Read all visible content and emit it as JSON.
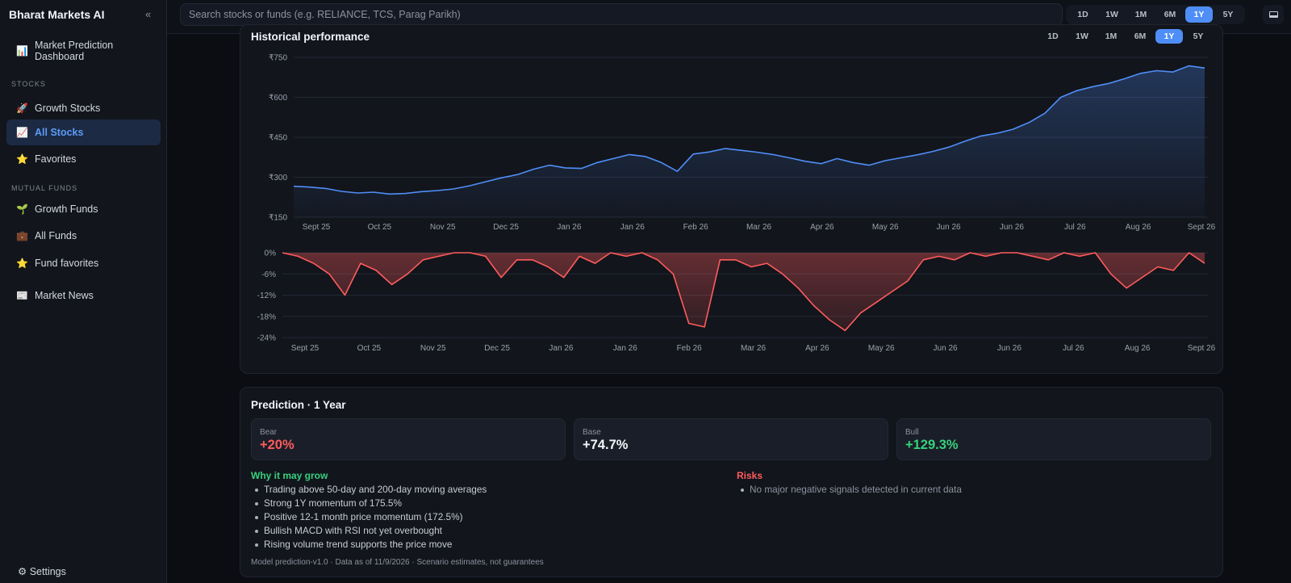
{
  "app": {
    "title": "Bharat Markets AI",
    "collapse_glyph": "«"
  },
  "sidebar": {
    "dashboard": {
      "label": "Market Prediction Dashboard",
      "line1": "Market Prediction",
      "line2": "Dashboard",
      "icon": "bar-chart-icon"
    },
    "stocks_header": "STOCKS",
    "stocks": [
      {
        "label": "Growth Stocks",
        "icon": "rocket-icon"
      },
      {
        "label": "All Stocks",
        "icon": "trend-chart-icon",
        "active": true
      },
      {
        "label": "Favorites",
        "icon": "star-icon"
      }
    ],
    "funds_header": "MUTUAL FUNDS",
    "funds": [
      {
        "label": "Growth Funds",
        "icon": "seedling-icon"
      },
      {
        "label": "All Funds",
        "icon": "briefcase-icon"
      },
      {
        "label": "Fund favorites",
        "icon": "star-icon"
      }
    ],
    "news": {
      "label": "Market News",
      "icon": "newspaper-icon"
    },
    "settings": {
      "label": "Settings",
      "icon": "gear-icon"
    }
  },
  "topbar": {
    "search_placeholder": "Search stocks or funds (e.g. RELIANCE, TCS, Parag Parikh)",
    "ranges": [
      "1D",
      "1W",
      "1M",
      "6M",
      "1Y",
      "5Y"
    ],
    "active_range": "1Y",
    "right_icon": "monitor-icon"
  },
  "chart": {
    "title": "Historical performance",
    "ranges": [
      "1D",
      "1W",
      "1M",
      "6M",
      "1Y",
      "5Y"
    ],
    "active_range": "1Y"
  },
  "chart_data": [
    {
      "type": "area",
      "title": "",
      "x_labels": [
        "Sept 25",
        "Oct 25",
        "Nov 25",
        "Dec 25",
        "Jan 26",
        "Jan 26",
        "Feb 26",
        "Mar 26",
        "Apr 26",
        "May 26",
        "Jun 26",
        "Jun 26",
        "Jul 26",
        "Aug 26",
        "Sept 26"
      ],
      "y_ticks": [
        "₹750",
        "₹600",
        "₹450",
        "₹300",
        "₹150"
      ],
      "ylim": [
        150,
        750
      ],
      "grid": true,
      "color": "#4f8ef7",
      "series": [
        {
          "values": [
            266,
            263,
            258,
            247,
            241,
            244,
            237,
            239,
            246,
            250,
            256,
            268,
            283,
            298,
            310,
            330,
            345,
            335,
            333,
            355,
            370,
            385,
            378,
            355,
            322,
            387,
            395,
            408,
            401,
            394,
            385,
            373,
            360,
            351,
            370,
            355,
            345,
            362,
            373,
            384,
            397,
            413,
            435,
            455,
            465,
            480,
            505,
            540,
            600,
            625,
            640,
            652,
            670,
            690,
            700,
            695,
            718,
            710
          ]
        }
      ]
    },
    {
      "type": "area",
      "title": "",
      "x_labels": [
        "Sept 25",
        "Oct 25",
        "Nov 25",
        "Dec 25",
        "Jan 26",
        "Jan 26",
        "Feb 26",
        "Mar 26",
        "Apr 26",
        "May 26",
        "Jun 26",
        "Jun 26",
        "Jul 26",
        "Aug 26",
        "Sept 26"
      ],
      "y_ticks": [
        "0%",
        "-6%",
        "-12%",
        "-18%",
        "-24%"
      ],
      "ylim": [
        -24,
        0
      ],
      "grid": true,
      "color": "#ff5c5c",
      "series": [
        {
          "values": [
            0,
            -1,
            -3,
            -6,
            -12,
            -3,
            -5,
            -9,
            -6,
            -2,
            -1,
            0,
            0,
            -1,
            -7,
            -2,
            -2,
            -4,
            -7,
            -1,
            -3,
            0,
            -1,
            0,
            -2,
            -6,
            -20,
            -21,
            -2,
            -2,
            -4,
            -3,
            -6,
            -10,
            -15,
            -19,
            -22,
            -17,
            -14,
            -11,
            -8,
            -2,
            -1,
            -2,
            0,
            -1,
            0,
            0,
            -1,
            -2,
            0,
            -1,
            0,
            -6,
            -10,
            -7,
            -4,
            -5,
            0,
            -3
          ]
        }
      ]
    }
  ],
  "prediction": {
    "title": "Prediction · 1 Year",
    "bear": {
      "label": "Bear",
      "value": "+20%",
      "color": "#ff5c5c"
    },
    "base": {
      "label": "Base",
      "value": "+74.7%",
      "color": "#f2f4f8"
    },
    "bull": {
      "label": "Bull",
      "value": "+129.3%",
      "color": "#37d17c"
    },
    "why_title": "Why it may grow",
    "why": [
      "Trading above 50-day and 200-day moving averages",
      "Strong 1Y momentum of 175.5%",
      "Positive 12-1 month price momentum (172.5%)",
      "Bullish MACD with RSI not yet overbought",
      "Rising volume trend supports the price move"
    ],
    "risks_title": "Risks",
    "risks": [
      "No major negative signals detected in current data"
    ],
    "footnote": "Model prediction-v1.0 · Data as of 11/9/2026 · Scenario estimates, not guarantees"
  }
}
